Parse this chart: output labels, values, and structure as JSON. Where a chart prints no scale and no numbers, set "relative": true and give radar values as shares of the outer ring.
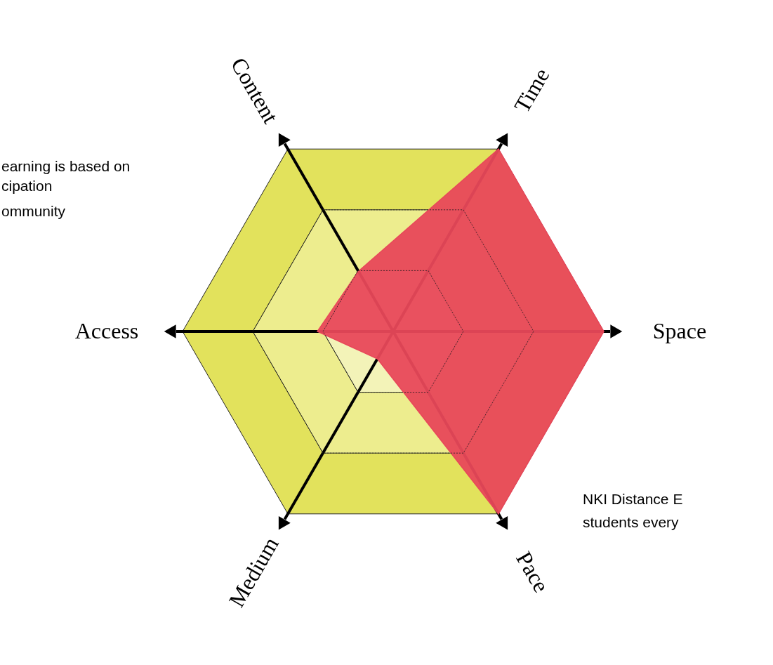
{
  "chart_data": {
    "type": "radar",
    "relative": true,
    "grid": true,
    "categories": [
      "Content",
      "Time",
      "Space",
      "Pace",
      "Medium",
      "Access"
    ],
    "series": [
      {
        "color": "#e8485a",
        "values": [
          0.33,
          1,
          1,
          1,
          0.15,
          0.36
        ]
      }
    ],
    "annotations": [
      "earning is based on",
      "cipation",
      "ommunity",
      "NKI Distance E",
      "students every"
    ]
  }
}
